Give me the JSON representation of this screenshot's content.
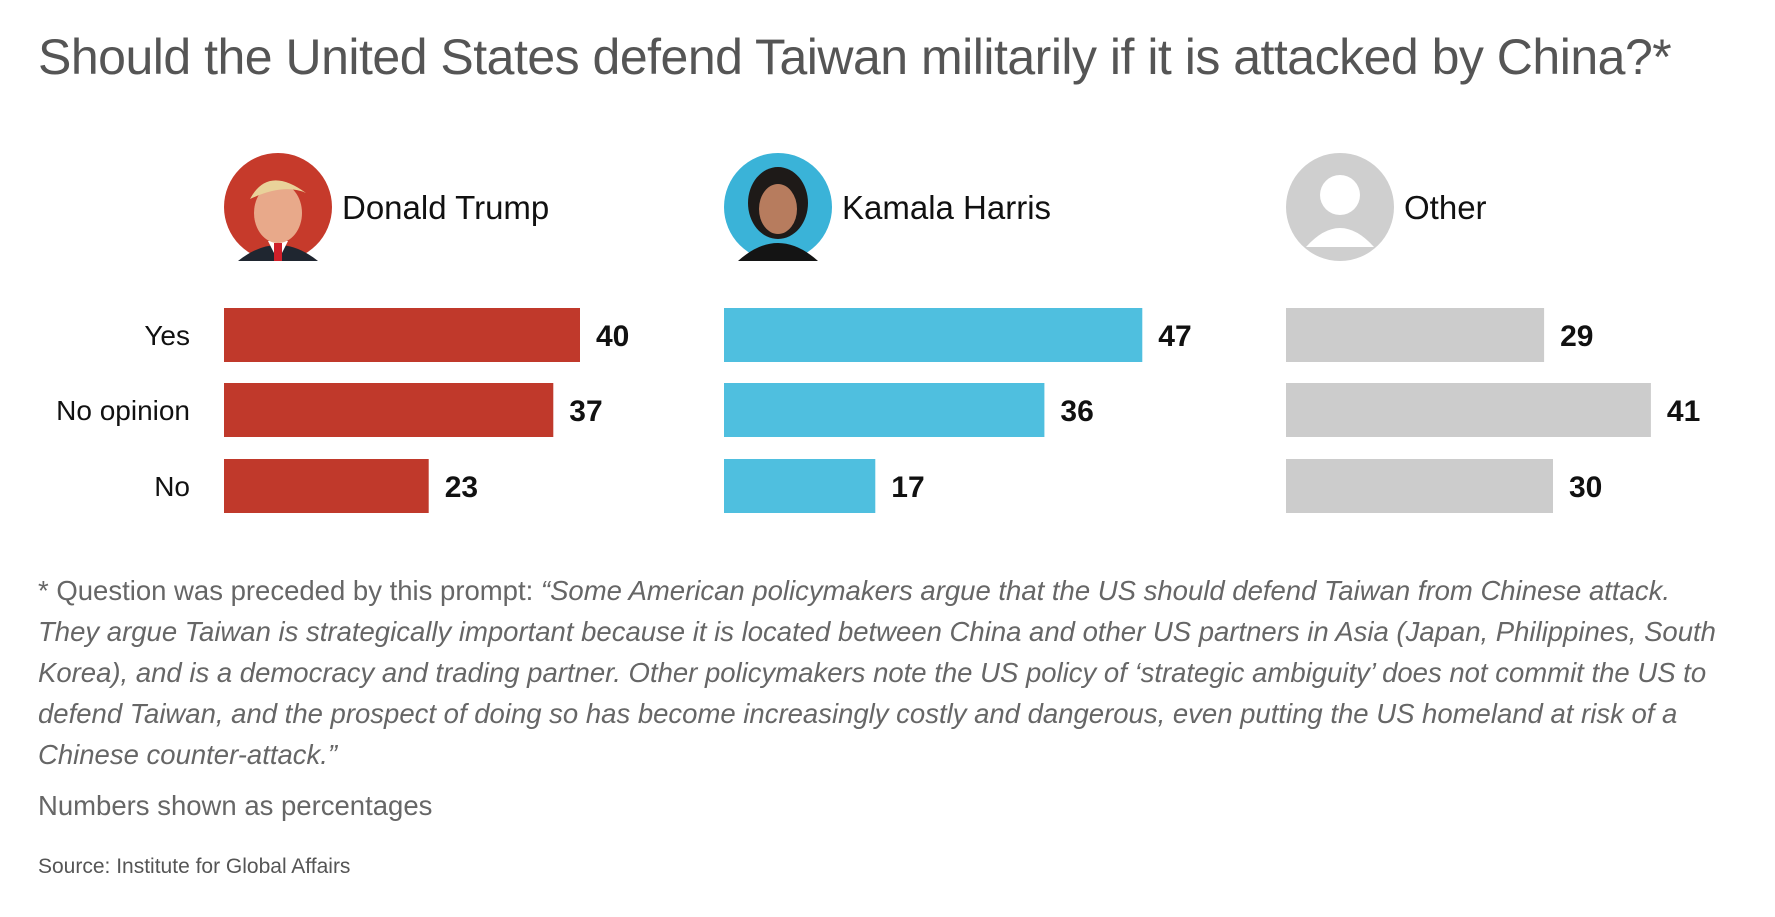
{
  "title": "Should the United States defend Taiwan militarily if it is attacked by China?*",
  "footnote": {
    "lead": "* Question was preceded by this prompt: ",
    "quote": "“Some American policymakers argue that the US should defend Taiwan from Chinese attack. They argue Taiwan is strategically important because it is located between China and other US partners in Asia (Japan, Philippines, South Korea), and is a democracy and trading partner. Other policymakers note the US policy of ‘strategic ambiguity’ does not commit the US to defend Taiwan, and the prospect of doing so has become increasingly costly and dangerous, even putting the US homeland at risk of a Chinese counter-attack.”"
  },
  "units_note": "Numbers shown as percentages",
  "source": "Source: Institute for Global Affairs",
  "chart_data": {
    "type": "bar",
    "orientation": "horizontal",
    "categories": [
      "Yes",
      "No opinion",
      "No"
    ],
    "series": [
      {
        "name": "Donald Trump",
        "values": [
          40,
          37,
          23
        ],
        "color": "#c0392b",
        "avatar": "trump-photo"
      },
      {
        "name": "Kamala Harris",
        "values": [
          47,
          36,
          17
        ],
        "color": "#4fbfdf",
        "avatar": "harris-photo"
      },
      {
        "name": "Other",
        "values": [
          29,
          41,
          30
        ],
        "color": "#cccccc",
        "avatar": "person-icon"
      }
    ],
    "xlim": [
      0,
      50
    ],
    "grid": false,
    "legend": "panel headers"
  }
}
